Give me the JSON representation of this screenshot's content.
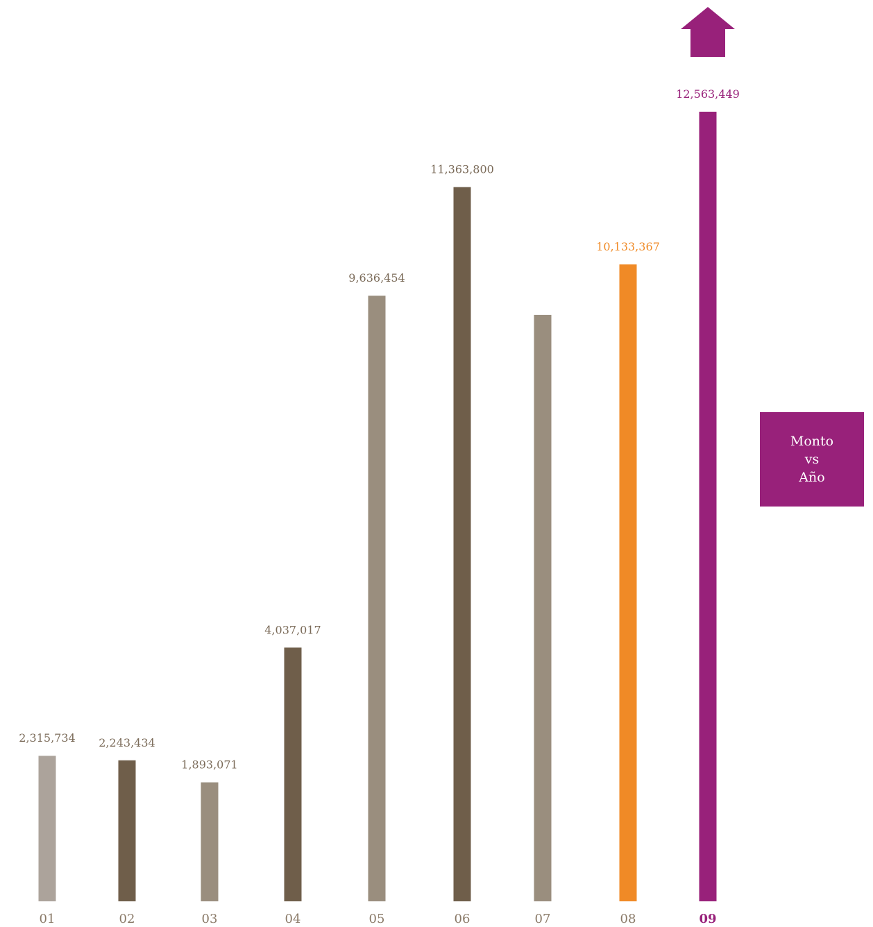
{
  "chart_data": {
    "type": "bar",
    "categories": [
      "01",
      "02",
      "03",
      "04",
      "05",
      "06",
      "07",
      "08",
      "09"
    ],
    "values": [
      2315734,
      2243434,
      1893071,
      4037017,
      9636454,
      11363800,
      9330000,
      10133367,
      12563449
    ],
    "data_labels": [
      "2,315,734",
      "2,243,434",
      "1,893,071",
      "4,037,017",
      "9,636,454",
      "11,363,800",
      "",
      "10,133,367",
      "12,563,449"
    ],
    "bar_colors": [
      "#aca39b",
      "#6f5e4a",
      "#9a8e7e",
      "#6f5e4a",
      "#9a8e7e",
      "#6f5e4a",
      "#9a8e7e",
      "#f08a26",
      "#98217a"
    ],
    "label_colors": [
      "#7a6a58",
      "#7a6a58",
      "#7a6a58",
      "#7a6a58",
      "#7a6a58",
      "#7a6a58",
      "#7a6a58",
      "#f08a26",
      "#98217a"
    ],
    "category_colors": [
      "#8a7a68",
      "#8a7a68",
      "#8a7a68",
      "#8a7a68",
      "#8a7a68",
      "#8a7a68",
      "#8a7a68",
      "#8a7a68",
      "#98217a"
    ],
    "highlight_category": "09",
    "ylim": [
      0,
      12563449
    ],
    "grid": false,
    "title": "",
    "xlabel": "",
    "ylabel": "",
    "legend": {
      "lines": [
        "Monto",
        "vs",
        "Año"
      ],
      "color": "#98217a",
      "placement": "right"
    },
    "trend_arrow": {
      "direction": "up",
      "color": "#98217a",
      "icon": "up-arrow-icon"
    }
  }
}
